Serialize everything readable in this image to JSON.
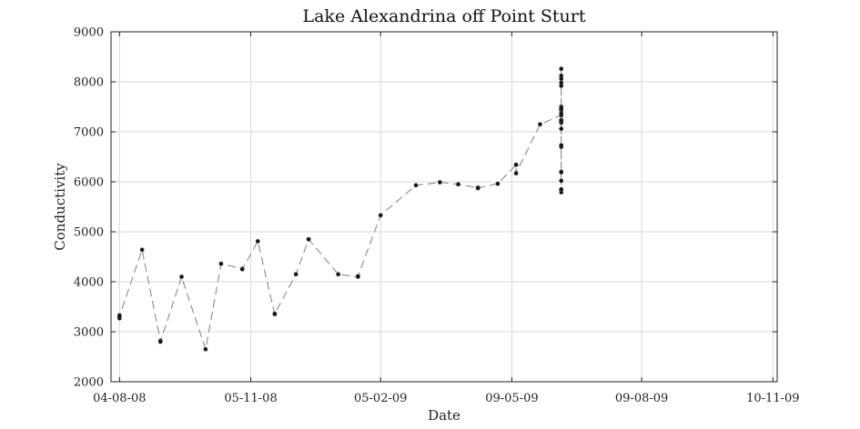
{
  "chart_data": {
    "type": "scatter",
    "title": "Lake Alexandrina off Point Sturt",
    "xlabel": "Date",
    "ylabel": "Conductivity",
    "xlim": [
      "2008-07-29",
      "2009-11-13"
    ],
    "ylim": [
      2000,
      9000
    ],
    "x_ticks": [
      "2008-08-04",
      "2008-11-05",
      "2009-02-05",
      "2009-05-09",
      "2009-08-09",
      "2009-11-10"
    ],
    "x_tick_labels": [
      "04-08-08",
      "05-11-08",
      "05-02-09",
      "09-05-09",
      "09-08-09",
      "10-11-09"
    ],
    "y_ticks": [
      2000,
      3000,
      4000,
      5000,
      6000,
      7000,
      8000,
      9000
    ],
    "grid": true,
    "line_style": "dashed",
    "series": [
      {
        "x": [
          "2008-08-04",
          "2008-08-04",
          "2008-08-04",
          "2008-08-20",
          "2008-09-02",
          "2008-09-02",
          "2008-09-17",
          "2008-10-04",
          "2008-10-15",
          "2008-10-30",
          "2008-10-30",
          "2008-11-10",
          "2008-11-22",
          "2008-11-22",
          "2008-12-07",
          "2008-12-16",
          "2008-12-16",
          "2009-01-06",
          "2009-01-20",
          "2009-01-20",
          "2009-02-05",
          "2009-03-02",
          "2009-03-19",
          "2009-04-01",
          "2009-04-15",
          "2009-04-15",
          "2009-04-15",
          "2009-04-29",
          "2009-05-12",
          "2009-05-12",
          "2009-05-12",
          "2009-05-29",
          "2009-06-13",
          "2009-06-13",
          "2009-06-13",
          "2009-06-13",
          "2009-06-13",
          "2009-06-13",
          "2009-06-13",
          "2009-06-13",
          "2009-06-13",
          "2009-06-13",
          "2009-06-13",
          "2009-06-13",
          "2009-06-13",
          "2009-06-13",
          "2009-06-13",
          "2009-06-13",
          "2009-06-13",
          "2009-06-13",
          "2009-06-13",
          "2009-06-13",
          "2009-06-13",
          "2009-06-13",
          "2009-06-13",
          "2009-06-13",
          "2009-06-13",
          "2009-06-13",
          "2009-06-13"
        ],
        "y": [
          3330,
          3270,
          3310,
          4640,
          2820,
          2800,
          4100,
          2650,
          4360,
          4260,
          4250,
          4810,
          3350,
          3360,
          4150,
          4850,
          4850,
          4150,
          4100,
          4110,
          5330,
          5930,
          5990,
          5950,
          5880,
          5870,
          5880,
          5960,
          6340,
          6340,
          6170,
          7150,
          7330,
          7370,
          7430,
          7200,
          7180,
          7240,
          7230,
          7200,
          7220,
          7460,
          7500,
          7440,
          7470,
          6200,
          6190,
          7980,
          8120,
          8060,
          7920,
          8260,
          5790,
          5840,
          5850,
          7060,
          6700,
          6730,
          6020
        ]
      }
    ]
  }
}
